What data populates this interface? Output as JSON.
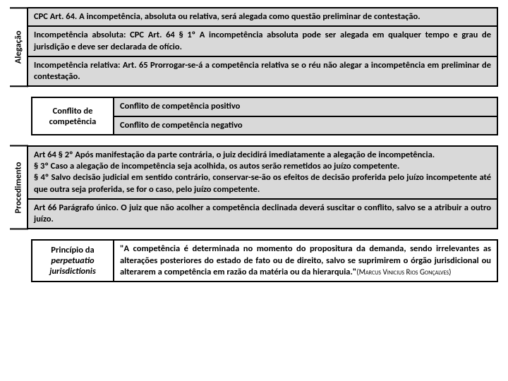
{
  "section1": {
    "label": "Alegação",
    "rows": [
      "<b>CPC Art. 64.  A incompetência, absoluta ou relativa, será alegada como questão preliminar de contestação.</b>",
      "<b>Incompetência absoluta: CPC Art. 64 § 1º A incompetência absoluta pode ser alegada em qualquer tempo e grau de jurisdição e deve ser declarada de ofício.</b>",
      "<b>Incompetência relativa: Art. 65  Prorrogar-se-á a competência relativa se o réu não alegar a incompetência em preliminar de contestação.</b>"
    ]
  },
  "section2": {
    "label": "Conflito de competência",
    "rows": [
      "Conflito de competência positivo",
      "Conflito de competência negativo"
    ]
  },
  "section3": {
    "label": "Procedimento",
    "rows": [
      "<b>Art 64 § 2º Após manifestação da parte contrária, o juiz decidirá imediatamente a alegação de incompetência.<br>§ 3º Caso a alegação de incompetência seja acolhida, os autos serão remetidos ao juízo competente.<br>§ 4º Salvo decisão judicial em sentido contrário, conservar-se-ão os efeitos de decisão proferida pelo juízo incompetente até que outra seja proferida, se for o caso, pelo juízo competente.</b>",
      "<b>Art 66 Parágrafo único.  O juiz que não acolher a competência declinada deverá suscitar o conflito, salvo se a atribuir a outro juízo.</b>"
    ]
  },
  "section4": {
    "label_line1": "Princípio da",
    "label_line2": "perpetuatio jurisdictionis",
    "text": "\"A competência é determinada no momento do propositura da demanda, sendo irrelevantes as alterações posteriores do estado de fato ou de direito, salvo se suprimirem o órgão jurisdicional ou alterarem a competência em razão da matéria ou da hierarquia.\"",
    "attribution": "(Marcus Vinicius Rios Gonçalves)"
  },
  "colors": {
    "row_bg": "#d9d9d9",
    "border": "#000000",
    "page_bg": "#ffffff"
  }
}
